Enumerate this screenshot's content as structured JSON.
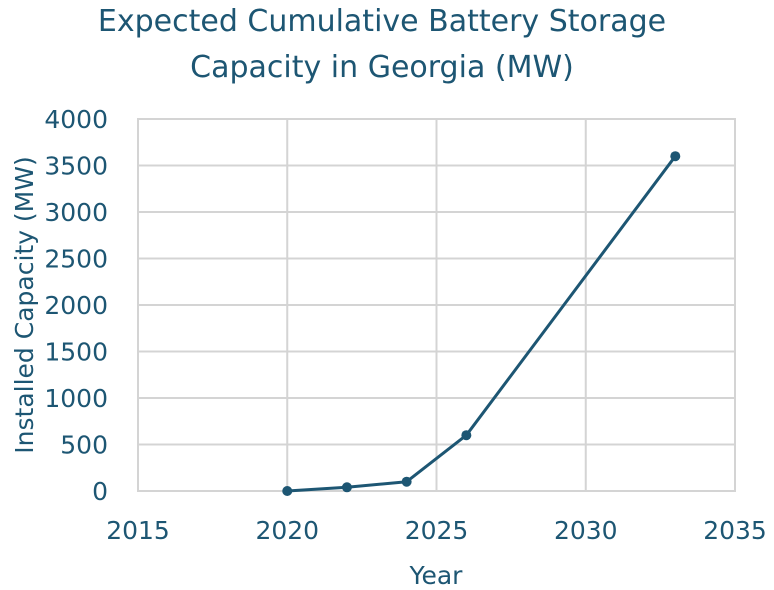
{
  "chart_data": {
    "type": "line",
    "title_lines": [
      "Expected Cumulative Battery Storage",
      "Capacity in Georgia (MW)"
    ],
    "xlabel": "Year",
    "ylabel": "Installed Capacity (MW)",
    "xlim": [
      2015,
      2035
    ],
    "ylim": [
      0,
      4000
    ],
    "x_ticks": [
      2015,
      2020,
      2025,
      2030,
      2035
    ],
    "y_ticks": [
      0,
      500,
      1000,
      1500,
      2000,
      2500,
      3000,
      3500,
      4000
    ],
    "grid": true,
    "series": [
      {
        "x": [
          2020,
          2022,
          2024,
          2026,
          2033
        ],
        "y": [
          0,
          40,
          100,
          600,
          3600
        ],
        "color": "#1d5673"
      }
    ]
  },
  "colors": {
    "text": "#1d5673",
    "grid": "#d4d4d4",
    "series": "#1d5673"
  }
}
